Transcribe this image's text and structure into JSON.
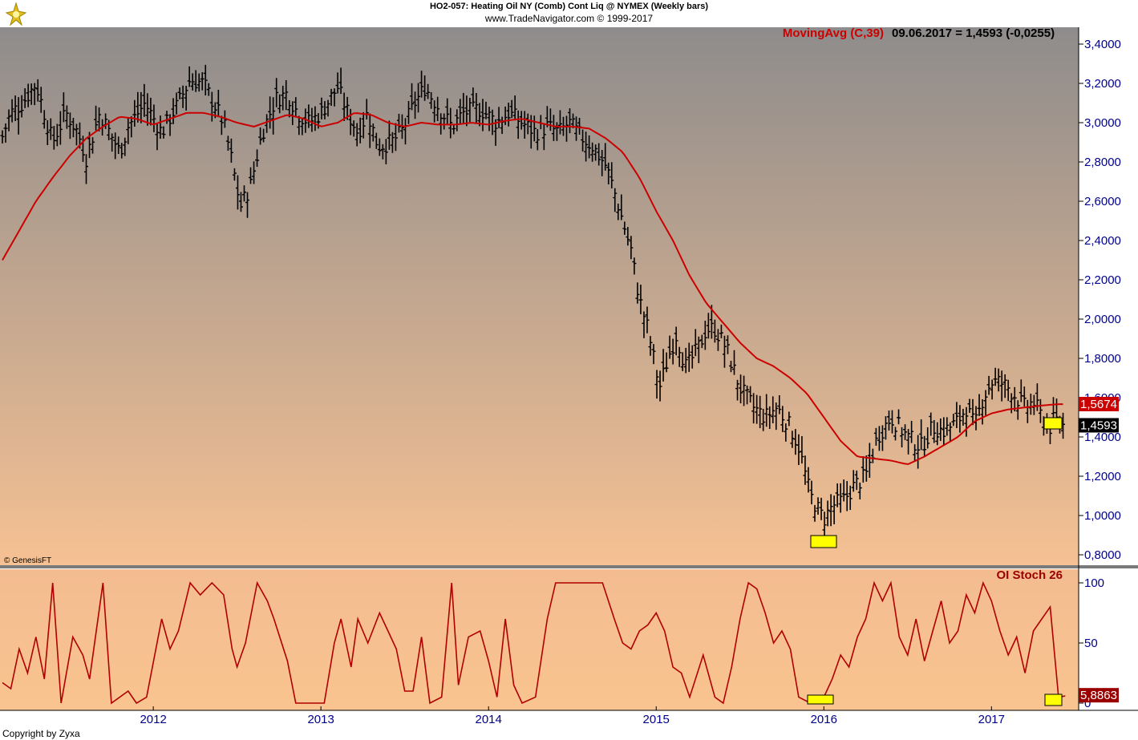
{
  "header": {
    "title": "HO2-057:  Heating Oil NY (Comb) Cont Liq @ NYMEX  (Weekly bars)",
    "source": "www.TradeNavigator.com © 1999-2017"
  },
  "footer": {
    "copyright": "Copyright by Zyxa",
    "genesis": "© GenesisFT"
  },
  "colors": {
    "ma_line": "#cc0000",
    "bars": "#000000",
    "highlight": "#ffff00",
    "stoch_line": "#b00000",
    "price_bg_top": "#8e8c8c",
    "price_bg_bottom": "#f6c193",
    "stoch_bg": "#f7c191",
    "axis_text": "#00008b"
  },
  "chart_data": [
    {
      "type": "ohlc",
      "name": "price",
      "legend": {
        "label": "MovingAvg (C,39)",
        "value_text": "09.06.2017 = 1,4593 (-0,0255)"
      },
      "ylim": [
        0.8,
        3.4
      ],
      "y_ticks": [
        "0,8000",
        "1,0000",
        "1,2000",
        "1,4000",
        "1,6000",
        "1,8000",
        "2,0000",
        "2,2000",
        "2,4000",
        "2,6000",
        "2,8000",
        "3,0000",
        "3,2000",
        "3,4000"
      ],
      "y_tick_values": [
        0.8,
        1.0,
        1.2,
        1.4,
        1.6,
        1.8,
        2.0,
        2.2,
        2.4,
        2.6,
        2.8,
        3.0,
        3.2,
        3.4
      ],
      "x_ticks": [
        "2012",
        "2013",
        "2014",
        "2015",
        "2016",
        "2017"
      ],
      "x_tick_times": [
        2012.0,
        2013.0,
        2014.0,
        2015.0,
        2016.0,
        2017.0
      ],
      "xlim": [
        2011.1,
        2017.52
      ],
      "price_anchors": [
        [
          2011.1,
          2.93
        ],
        [
          2011.15,
          3.05
        ],
        [
          2011.22,
          3.1
        ],
        [
          2011.3,
          3.2
        ],
        [
          2011.35,
          3.05
        ],
        [
          2011.4,
          2.9
        ],
        [
          2011.48,
          3.05
        ],
        [
          2011.55,
          2.95
        ],
        [
          2011.6,
          2.82
        ],
        [
          2011.68,
          3.05
        ],
        [
          2011.74,
          2.95
        ],
        [
          2011.8,
          2.85
        ],
        [
          2011.85,
          2.98
        ],
        [
          2011.95,
          3.1
        ],
        [
          2012.05,
          2.95
        ],
        [
          2012.15,
          3.1
        ],
        [
          2012.22,
          3.22
        ],
        [
          2012.3,
          3.2
        ],
        [
          2012.36,
          3.1
        ],
        [
          2012.42,
          3.0
        ],
        [
          2012.47,
          2.8
        ],
        [
          2012.52,
          2.57
        ],
        [
          2012.58,
          2.68
        ],
        [
          2012.65,
          2.95
        ],
        [
          2012.73,
          3.12
        ],
        [
          2012.8,
          3.15
        ],
        [
          2012.86,
          3.05
        ],
        [
          2012.93,
          3.0
        ],
        [
          2013.0,
          3.05
        ],
        [
          2013.1,
          3.18
        ],
        [
          2013.16,
          3.05
        ],
        [
          2013.22,
          2.95
        ],
        [
          2013.28,
          3.05
        ],
        [
          2013.34,
          2.88
        ],
        [
          2013.42,
          2.9
        ],
        [
          2013.48,
          2.95
        ],
        [
          2013.56,
          3.1
        ],
        [
          2013.62,
          3.18
        ],
        [
          2013.7,
          3.08
        ],
        [
          2013.78,
          2.98
        ],
        [
          2013.85,
          3.05
        ],
        [
          2013.95,
          3.07
        ],
        [
          2014.05,
          3.0
        ],
        [
          2014.12,
          3.05
        ],
        [
          2014.2,
          3.0
        ],
        [
          2014.28,
          2.95
        ],
        [
          2014.35,
          2.98
        ],
        [
          2014.42,
          2.95
        ],
        [
          2014.48,
          3.0
        ],
        [
          2014.55,
          2.93
        ],
        [
          2014.62,
          2.88
        ],
        [
          2014.7,
          2.78
        ],
        [
          2014.75,
          2.65
        ],
        [
          2014.8,
          2.5
        ],
        [
          2014.85,
          2.35
        ],
        [
          2014.9,
          2.1
        ],
        [
          2014.95,
          1.95
        ],
        [
          2015.02,
          1.65
        ],
        [
          2015.07,
          1.8
        ],
        [
          2015.12,
          1.92
        ],
        [
          2015.18,
          1.75
        ],
        [
          2015.25,
          1.85
        ],
        [
          2015.3,
          1.95
        ],
        [
          2015.35,
          1.95
        ],
        [
          2015.42,
          1.85
        ],
        [
          2015.5,
          1.65
        ],
        [
          2015.58,
          1.55
        ],
        [
          2015.65,
          1.5
        ],
        [
          2015.72,
          1.55
        ],
        [
          2015.8,
          1.45
        ],
        [
          2015.85,
          1.35
        ],
        [
          2015.92,
          1.1
        ],
        [
          2016.0,
          0.98
        ],
        [
          2016.05,
          1.05
        ],
        [
          2016.12,
          1.08
        ],
        [
          2016.18,
          1.15
        ],
        [
          2016.25,
          1.2
        ],
        [
          2016.32,
          1.4
        ],
        [
          2016.4,
          1.5
        ],
        [
          2016.45,
          1.45
        ],
        [
          2016.5,
          1.4
        ],
        [
          2016.58,
          1.35
        ],
        [
          2016.65,
          1.45
        ],
        [
          2016.72,
          1.43
        ],
        [
          2016.8,
          1.48
        ],
        [
          2016.85,
          1.55
        ],
        [
          2016.9,
          1.45
        ],
        [
          2016.95,
          1.6
        ],
        [
          2017.0,
          1.68
        ],
        [
          2017.05,
          1.68
        ],
        [
          2017.1,
          1.65
        ],
        [
          2017.15,
          1.6
        ],
        [
          2017.2,
          1.55
        ],
        [
          2017.25,
          1.58
        ],
        [
          2017.3,
          1.5
        ],
        [
          2017.35,
          1.45
        ],
        [
          2017.38,
          1.5
        ],
        [
          2017.4,
          1.46
        ],
        [
          2017.44,
          1.46
        ]
      ],
      "ma_anchors": [
        [
          2011.1,
          2.3
        ],
        [
          2011.2,
          2.45
        ],
        [
          2011.3,
          2.6
        ],
        [
          2011.4,
          2.72
        ],
        [
          2011.5,
          2.83
        ],
        [
          2011.6,
          2.92
        ],
        [
          2011.7,
          2.98
        ],
        [
          2011.8,
          3.03
        ],
        [
          2011.9,
          3.02
        ],
        [
          2012.0,
          2.99
        ],
        [
          2012.1,
          3.02
        ],
        [
          2012.2,
          3.05
        ],
        [
          2012.3,
          3.05
        ],
        [
          2012.4,
          3.03
        ],
        [
          2012.5,
          3.0
        ],
        [
          2012.6,
          2.98
        ],
        [
          2012.7,
          3.01
        ],
        [
          2012.8,
          3.04
        ],
        [
          2012.9,
          3.02
        ],
        [
          2013.0,
          2.98
        ],
        [
          2013.1,
          3.0
        ],
        [
          2013.2,
          3.05
        ],
        [
          2013.3,
          3.04
        ],
        [
          2013.4,
          3.0
        ],
        [
          2013.5,
          2.98
        ],
        [
          2013.6,
          3.0
        ],
        [
          2013.7,
          2.99
        ],
        [
          2013.8,
          2.99
        ],
        [
          2013.9,
          3.0
        ],
        [
          2014.0,
          2.99
        ],
        [
          2014.1,
          3.01
        ],
        [
          2014.2,
          3.02
        ],
        [
          2014.3,
          3.0
        ],
        [
          2014.4,
          2.98
        ],
        [
          2014.5,
          2.98
        ],
        [
          2014.6,
          2.97
        ],
        [
          2014.7,
          2.92
        ],
        [
          2014.8,
          2.85
        ],
        [
          2014.9,
          2.72
        ],
        [
          2015.0,
          2.55
        ],
        [
          2015.1,
          2.4
        ],
        [
          2015.2,
          2.22
        ],
        [
          2015.3,
          2.08
        ],
        [
          2015.4,
          1.98
        ],
        [
          2015.5,
          1.88
        ],
        [
          2015.6,
          1.8
        ],
        [
          2015.7,
          1.76
        ],
        [
          2015.8,
          1.7
        ],
        [
          2015.9,
          1.62
        ],
        [
          2016.0,
          1.5
        ],
        [
          2016.1,
          1.38
        ],
        [
          2016.2,
          1.3
        ],
        [
          2016.3,
          1.29
        ],
        [
          2016.4,
          1.28
        ],
        [
          2016.5,
          1.26
        ],
        [
          2016.6,
          1.3
        ],
        [
          2016.7,
          1.35
        ],
        [
          2016.8,
          1.4
        ],
        [
          2016.9,
          1.48
        ],
        [
          2017.0,
          1.52
        ],
        [
          2017.1,
          1.54
        ],
        [
          2017.2,
          1.55
        ],
        [
          2017.3,
          1.56
        ],
        [
          2017.4,
          1.567
        ],
        [
          2017.44,
          1.567
        ]
      ],
      "last_price_label": "1,4593",
      "last_price": 1.4593,
      "ma_value_label": "1,5674",
      "ma_value": 1.5674
    },
    {
      "type": "line",
      "name": "OI Stoch 26",
      "title": "OI Stoch 26",
      "ylim": [
        0,
        100
      ],
      "y_ticks": [
        "0",
        "50",
        "100"
      ],
      "y_tick_values": [
        0,
        50,
        100
      ],
      "value_label": "5,8863",
      "last_value": 5.8863,
      "points": [
        [
          2011.1,
          17
        ],
        [
          2011.15,
          12
        ],
        [
          2011.2,
          45
        ],
        [
          2011.25,
          25
        ],
        [
          2011.3,
          55
        ],
        [
          2011.35,
          20
        ],
        [
          2011.4,
          100
        ],
        [
          2011.45,
          0
        ],
        [
          2011.52,
          55
        ],
        [
          2011.58,
          40
        ],
        [
          2011.62,
          20
        ],
        [
          2011.7,
          100
        ],
        [
          2011.75,
          0
        ],
        [
          2011.85,
          10
        ],
        [
          2011.9,
          0
        ],
        [
          2011.96,
          5
        ],
        [
          2012.05,
          70
        ],
        [
          2012.1,
          45
        ],
        [
          2012.15,
          60
        ],
        [
          2012.22,
          100
        ],
        [
          2012.28,
          90
        ],
        [
          2012.35,
          100
        ],
        [
          2012.42,
          90
        ],
        [
          2012.47,
          45
        ],
        [
          2012.5,
          30
        ],
        [
          2012.55,
          50
        ],
        [
          2012.62,
          100
        ],
        [
          2012.68,
          85
        ],
        [
          2012.72,
          70
        ],
        [
          2012.8,
          35
        ],
        [
          2012.85,
          0
        ],
        [
          2012.92,
          0
        ],
        [
          2013.02,
          0
        ],
        [
          2013.08,
          50
        ],
        [
          2013.12,
          70
        ],
        [
          2013.18,
          30
        ],
        [
          2013.22,
          70
        ],
        [
          2013.28,
          50
        ],
        [
          2013.35,
          75
        ],
        [
          2013.4,
          60
        ],
        [
          2013.45,
          45
        ],
        [
          2013.5,
          10
        ],
        [
          2013.55,
          10
        ],
        [
          2013.6,
          55
        ],
        [
          2013.65,
          0
        ],
        [
          2013.72,
          5
        ],
        [
          2013.78,
          100
        ],
        [
          2013.82,
          15
        ],
        [
          2013.88,
          55
        ],
        [
          2013.95,
          60
        ],
        [
          2014.0,
          35
        ],
        [
          2014.05,
          5
        ],
        [
          2014.1,
          70
        ],
        [
          2014.15,
          15
        ],
        [
          2014.2,
          0
        ],
        [
          2014.28,
          5
        ],
        [
          2014.35,
          70
        ],
        [
          2014.4,
          100
        ],
        [
          2014.48,
          100
        ],
        [
          2014.55,
          100
        ],
        [
          2014.62,
          100
        ],
        [
          2014.68,
          100
        ],
        [
          2014.75,
          70
        ],
        [
          2014.8,
          50
        ],
        [
          2014.85,
          45
        ],
        [
          2014.9,
          60
        ],
        [
          2014.95,
          65
        ],
        [
          2015.0,
          75
        ],
        [
          2015.05,
          60
        ],
        [
          2015.1,
          30
        ],
        [
          2015.15,
          25
        ],
        [
          2015.2,
          5
        ],
        [
          2015.28,
          40
        ],
        [
          2015.35,
          5
        ],
        [
          2015.4,
          0
        ],
        [
          2015.45,
          30
        ],
        [
          2015.5,
          70
        ],
        [
          2015.55,
          100
        ],
        [
          2015.6,
          95
        ],
        [
          2015.65,
          75
        ],
        [
          2015.7,
          50
        ],
        [
          2015.75,
          60
        ],
        [
          2015.8,
          45
        ],
        [
          2015.85,
          5
        ],
        [
          2015.92,
          0
        ],
        [
          2016.0,
          5
        ],
        [
          2016.05,
          20
        ],
        [
          2016.1,
          40
        ],
        [
          2016.15,
          30
        ],
        [
          2016.2,
          55
        ],
        [
          2016.25,
          70
        ],
        [
          2016.3,
          100
        ],
        [
          2016.35,
          85
        ],
        [
          2016.4,
          100
        ],
        [
          2016.45,
          55
        ],
        [
          2016.5,
          40
        ],
        [
          2016.55,
          70
        ],
        [
          2016.6,
          35
        ],
        [
          2016.65,
          60
        ],
        [
          2016.7,
          85
        ],
        [
          2016.75,
          50
        ],
        [
          2016.8,
          60
        ],
        [
          2016.85,
          90
        ],
        [
          2016.9,
          75
        ],
        [
          2016.95,
          100
        ],
        [
          2017.0,
          85
        ],
        [
          2017.05,
          60
        ],
        [
          2017.1,
          40
        ],
        [
          2017.15,
          55
        ],
        [
          2017.2,
          25
        ],
        [
          2017.25,
          60
        ],
        [
          2017.3,
          70
        ],
        [
          2017.35,
          80
        ],
        [
          2017.4,
          5
        ],
        [
          2017.44,
          5.9
        ]
      ]
    }
  ]
}
